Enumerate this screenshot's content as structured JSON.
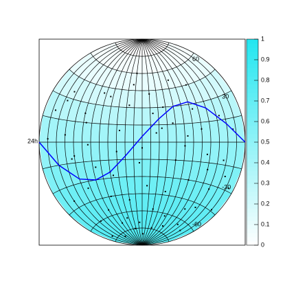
{
  "chart_data": {
    "type": "scatter",
    "projection": "aitoff",
    "background": {
      "lat_edges": [
        -90,
        -75,
        -60,
        -45,
        -30,
        -15,
        0,
        15,
        30,
        45,
        60,
        75,
        90
      ],
      "values": [
        0.78,
        0.76,
        0.72,
        0.66,
        0.58,
        0.5,
        0.42,
        0.32,
        0.2,
        0.1,
        0.04,
        0
      ]
    },
    "parallels": [
      -75,
      -60,
      -45,
      -30,
      -15,
      0,
      15,
      30,
      45,
      60,
      75
    ],
    "meridians": [
      -165,
      -150,
      -135,
      -120,
      -105,
      -90,
      -75,
      -60,
      -45,
      -30,
      -15,
      0,
      15,
      30,
      45,
      60,
      75,
      90,
      105,
      120,
      135,
      150,
      165
    ],
    "yticks": [
      60,
      30,
      -30,
      -60
    ],
    "xticks": [
      {
        "value": -180,
        "label": "24h"
      }
    ],
    "series": [
      {
        "color": "#000000",
        "x": [
          -160,
          -140,
          -120,
          -100,
          -80,
          -60,
          -40,
          -20,
          0,
          20,
          40,
          60,
          80,
          100,
          120,
          140,
          160,
          -150,
          -110,
          -70,
          -30,
          10,
          50,
          90,
          130,
          170,
          -130,
          -90,
          -50,
          -10,
          30,
          70,
          110,
          150,
          -165,
          -125,
          -85,
          -45,
          -5,
          35,
          75,
          115,
          155,
          -145,
          -105,
          -65,
          -25,
          15,
          55,
          95,
          135,
          -155,
          -115,
          -75,
          -35,
          5,
          45,
          85,
          125,
          165,
          -135,
          -95,
          -55,
          -15,
          25,
          65,
          105,
          145
        ],
        "values": [
          20,
          35,
          -10,
          15,
          40,
          -25,
          10,
          50,
          -5,
          25,
          30,
          -15,
          5,
          45,
          -20,
          18,
          8,
          -40,
          -35,
          -45,
          -50,
          -38,
          -42,
          -30,
          -48,
          -28,
          -60,
          -55,
          -65,
          -70,
          -58,
          -62,
          -52,
          -66,
          2,
          -12,
          -20,
          -8,
          -18,
          12,
          -3,
          -9,
          -22,
          28,
          22,
          38,
          32,
          42,
          16,
          26,
          -33,
          -72,
          -78,
          -68,
          -75,
          -80,
          -74,
          -70,
          -64,
          -44,
          5,
          -2,
          -28,
          60,
          8,
          52,
          10,
          -12
        ]
      }
    ],
    "curve": {
      "color": "#0000ff",
      "x": [
        -180,
        -150,
        -120,
        -90,
        -60,
        -30,
        0,
        30,
        60,
        90,
        120,
        150,
        180
      ],
      "values": [
        0,
        -15,
        -27,
        -30,
        -25,
        -12,
        5,
        20,
        30,
        32,
        25,
        12,
        0
      ]
    },
    "zlim": [
      0,
      1
    ],
    "zticks": [
      0,
      0.1,
      0.2,
      0.3,
      0.4,
      0.5,
      0.6,
      0.7,
      0.8,
      0.9,
      1
    ]
  }
}
